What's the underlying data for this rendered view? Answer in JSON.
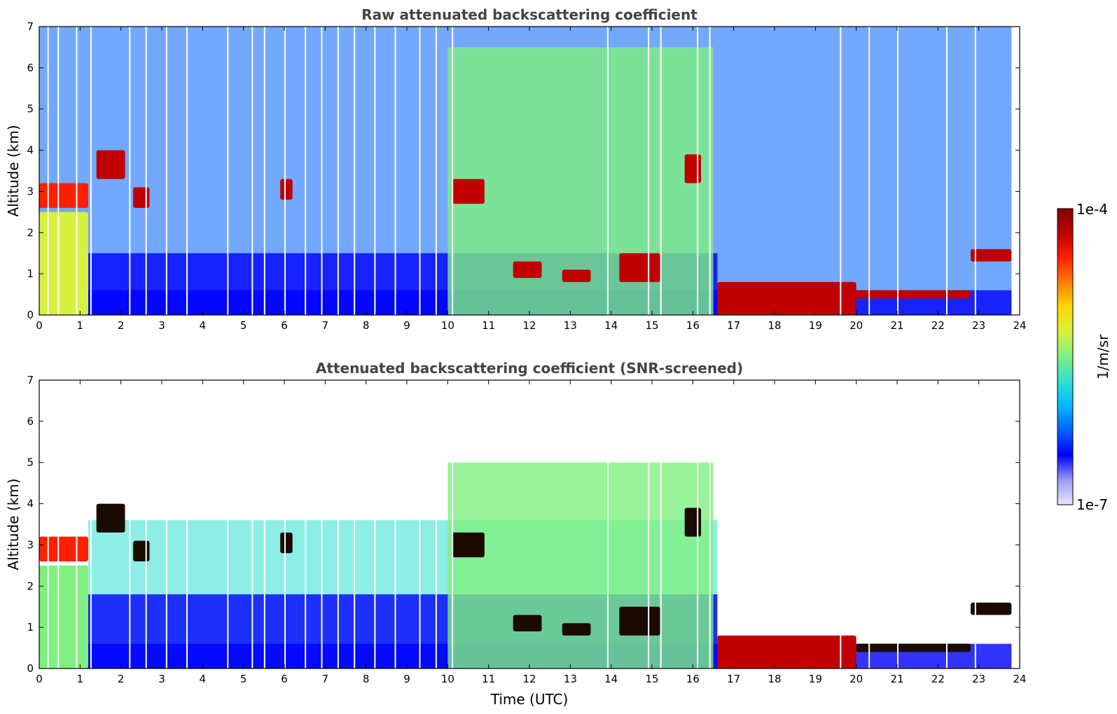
{
  "chart_data": [
    {
      "type": "heatmap",
      "title": "Raw attenuated backscattering coefficient",
      "xlabel": "",
      "ylabel": "Altitude (km)",
      "xlim": [
        0,
        24
      ],
      "ylim": [
        0,
        7
      ],
      "xticks": [
        "0",
        "1",
        "2",
        "3",
        "4",
        "5",
        "6",
        "7",
        "8",
        "9",
        "10",
        "11",
        "12",
        "13",
        "14",
        "15",
        "16",
        "17",
        "18",
        "19",
        "20",
        "21",
        "22",
        "23",
        "24"
      ],
      "yticks": [
        "0",
        "1",
        "2",
        "3",
        "4",
        "5",
        "6",
        "7"
      ],
      "grid": false,
      "layers": [
        {
          "t0": 0,
          "t1": 23.8,
          "top": 7.0,
          "level": 0.28
        },
        {
          "t0": 0,
          "t1": 16.6,
          "top": 1.5,
          "level": 0.18
        },
        {
          "t0": 0,
          "t1": 23.8,
          "top": 0.6,
          "level": 0.14
        },
        {
          "t0": 10,
          "t1": 16.5,
          "top": 6.5,
          "level": 0.48
        }
      ],
      "cloud_segments": [
        {
          "t": [
            0.0,
            1.2
          ],
          "alt": [
            2.6,
            3.2
          ],
          "level": 0.85
        },
        {
          "t": [
            0.0,
            1.2
          ],
          "alt": [
            0.0,
            2.5
          ],
          "level": 0.55
        },
        {
          "t": [
            1.4,
            2.1
          ],
          "alt": [
            3.3,
            4.0
          ],
          "level": 0.95
        },
        {
          "t": [
            2.3,
            2.7
          ],
          "alt": [
            2.6,
            3.1
          ],
          "level": 0.9
        },
        {
          "t": [
            5.9,
            6.2
          ],
          "alt": [
            2.8,
            3.3
          ],
          "level": 0.9
        },
        {
          "t": [
            10.1,
            10.9
          ],
          "alt": [
            2.7,
            3.3
          ],
          "level": 0.95
        },
        {
          "t": [
            11.6,
            12.3
          ],
          "alt": [
            0.9,
            1.3
          ],
          "level": 0.9
        },
        {
          "t": [
            12.8,
            13.5
          ],
          "alt": [
            0.8,
            1.1
          ],
          "level": 0.9
        },
        {
          "t": [
            14.2,
            15.2
          ],
          "alt": [
            0.8,
            1.5
          ],
          "level": 0.9
        },
        {
          "t": [
            15.8,
            16.2
          ],
          "alt": [
            3.2,
            3.9
          ],
          "level": 0.9
        },
        {
          "t": [
            16.6,
            20.0
          ],
          "alt": [
            0.0,
            0.8
          ],
          "level": 0.92
        },
        {
          "t": [
            20.0,
            22.8
          ],
          "alt": [
            0.4,
            0.6
          ],
          "level": 0.9
        },
        {
          "t": [
            22.8,
            23.8
          ],
          "alt": [
            1.3,
            1.6
          ],
          "level": 0.9
        }
      ],
      "gaps_utc": [
        0.2,
        0.45,
        0.9,
        1.25,
        2.2,
        2.6,
        3.1,
        3.6,
        4.6,
        5.2,
        5.5,
        6.0,
        6.5,
        6.9,
        7.3,
        7.7,
        8.2,
        8.7,
        9.3,
        9.7,
        10.1,
        13.9,
        14.9,
        15.2,
        16.1,
        16.4,
        19.6,
        20.3,
        21.0,
        22.2,
        22.9
      ]
    },
    {
      "type": "heatmap",
      "title": "Attenuated backscattering coefficient (SNR-screened)",
      "xlabel": "Time (UTC)",
      "ylabel": "Altitude (km)",
      "xlim": [
        0,
        24
      ],
      "ylim": [
        0,
        7
      ],
      "xticks": [
        "0",
        "1",
        "2",
        "3",
        "4",
        "5",
        "6",
        "7",
        "8",
        "9",
        "10",
        "11",
        "12",
        "13",
        "14",
        "15",
        "16",
        "17",
        "18",
        "19",
        "20",
        "21",
        "22",
        "23",
        "24"
      ],
      "yticks": [
        "0",
        "1",
        "2",
        "3",
        "4",
        "5",
        "6",
        "7"
      ],
      "grid": false,
      "layers": [
        {
          "t0": 1.2,
          "t1": 16.6,
          "top": 3.6,
          "level": 0.42
        },
        {
          "t0": 0,
          "t1": 16.6,
          "top": 1.8,
          "level": 0.16
        },
        {
          "t0": 0,
          "t1": 23.8,
          "top": 0.6,
          "level": 0.14
        },
        {
          "t0": 10,
          "t1": 16.5,
          "top": 5.0,
          "level": 0.5
        }
      ],
      "cloud_segments": [
        {
          "t": [
            0.0,
            1.2
          ],
          "alt": [
            2.6,
            3.2
          ],
          "level": 0.85
        },
        {
          "t": [
            0.0,
            1.2
          ],
          "alt": [
            0.0,
            2.5
          ],
          "level": 0.5
        },
        {
          "t": [
            1.4,
            2.1
          ],
          "alt": [
            3.3,
            4.0
          ],
          "level": 1.0
        },
        {
          "t": [
            2.3,
            2.7
          ],
          "alt": [
            2.6,
            3.1
          ],
          "level": 1.0
        },
        {
          "t": [
            5.9,
            6.2
          ],
          "alt": [
            2.8,
            3.3
          ],
          "level": 1.0
        },
        {
          "t": [
            10.1,
            10.9
          ],
          "alt": [
            2.7,
            3.3
          ],
          "level": 1.0
        },
        {
          "t": [
            11.6,
            12.3
          ],
          "alt": [
            0.9,
            1.3
          ],
          "level": 1.0
        },
        {
          "t": [
            12.8,
            13.5
          ],
          "alt": [
            0.8,
            1.1
          ],
          "level": 1.0
        },
        {
          "t": [
            14.2,
            15.2
          ],
          "alt": [
            0.8,
            1.5
          ],
          "level": 1.0
        },
        {
          "t": [
            15.8,
            16.2
          ],
          "alt": [
            3.2,
            3.9
          ],
          "level": 1.0
        },
        {
          "t": [
            16.6,
            20.0
          ],
          "alt": [
            0.0,
            0.8
          ],
          "level": 0.92
        },
        {
          "t": [
            20.0,
            22.8
          ],
          "alt": [
            0.4,
            0.6
          ],
          "level": 1.0
        },
        {
          "t": [
            22.8,
            23.8
          ],
          "alt": [
            1.3,
            1.6
          ],
          "level": 1.0
        }
      ],
      "gaps_utc": [
        0.2,
        0.45,
        0.9,
        1.25,
        2.2,
        2.6,
        3.1,
        3.6,
        4.6,
        5.2,
        5.5,
        6.0,
        6.5,
        6.9,
        7.3,
        7.7,
        8.2,
        8.7,
        9.3,
        9.7,
        10.1,
        13.9,
        14.9,
        15.2,
        16.1,
        16.4,
        19.6,
        20.3,
        21.0,
        22.2,
        22.9
      ]
    }
  ],
  "colorbar": {
    "max_label": "1e-4",
    "min_label": "1e-7",
    "units": "1/m/sr",
    "colormap": [
      "#e8e8ff",
      "#9a9af5",
      "#0000ff",
      "#0060ff",
      "#00b8ff",
      "#30e0d0",
      "#80f080",
      "#d8f040",
      "#ffd800",
      "#ff8000",
      "#ff2000",
      "#c00000",
      "#800000"
    ]
  }
}
